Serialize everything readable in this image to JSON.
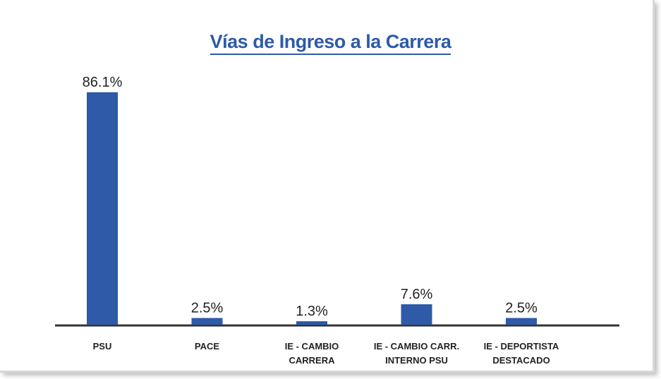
{
  "chart_data": {
    "type": "bar",
    "title": "Vías de Ingreso a la Carrera",
    "categories": [
      "PSU",
      "PACE",
      "IE - CAMBIO CARRERA",
      "IE - CAMBIO CARR. INTERNO PSU",
      "IE - DEPORTISTA DESTACADO"
    ],
    "values": [
      86.1,
      2.5,
      1.3,
      7.6,
      2.5
    ],
    "value_labels": [
      "86.1%",
      "2.5%",
      "1.3%",
      "7.6%",
      "2.5%"
    ],
    "color": "#2e5aa8"
  }
}
